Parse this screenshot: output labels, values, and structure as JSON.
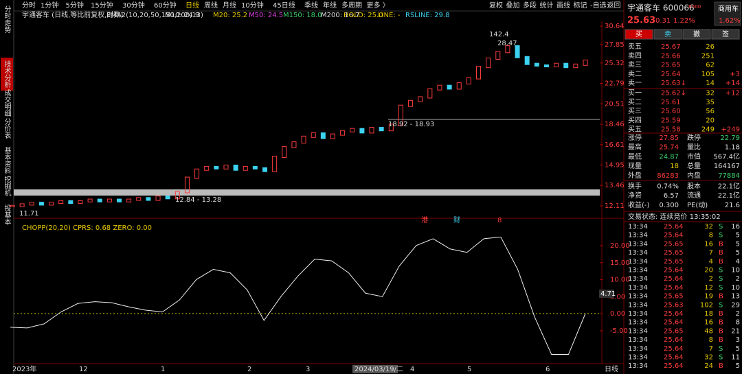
{
  "nav_tabs": [
    "分时走势",
    "技术分析",
    "成交明细",
    "分价表",
    "基本资料",
    "挖掘机",
    "投基本"
  ],
  "period_tabs": [
    "分时",
    "1分钟",
    "5分钟",
    "15分钟",
    "30分钟",
    "60分钟",
    "日线",
    "周线",
    "月线",
    "10分钟",
    "45日线",
    "季线",
    "年线",
    "多周期",
    "更多 〉"
  ],
  "tools": [
    "复权",
    "叠加",
    "多段",
    "统计",
    "画线",
    "标记",
    "-自选",
    "返回"
  ],
  "indicator_title": "宇通客车 (日线,等比前复权,对数)",
  "ema_label": "EMA2(10,20,50,150,200,13)",
  "ma_values": [
    "M10: 24.9",
    "M20: 25.2",
    "M50: 24.5",
    "M150: 18.0",
    "M200: 16.7",
    "HOLD: 25.0",
    "LINE: -",
    "RSLINE: 29.8"
  ],
  "price_axis": [
    30.64,
    27.85,
    25.32,
    22.79,
    20.51,
    18.46,
    16.61,
    14.95,
    13.46,
    12.11
  ],
  "annotations": [
    "142.4",
    "28.47",
    "18.92 - 18.93",
    "12.84 - 13.28",
    "11.71"
  ],
  "event_tags": [
    "港",
    "财",
    "8"
  ],
  "closes": [
    12.1,
    12.2,
    12.3,
    12.2,
    12.3,
    12.4,
    12.3,
    12.4,
    12.5,
    12.4,
    12.5,
    12.4,
    12.5,
    12.6,
    12.5,
    12.7,
    12.6,
    13.0,
    14.0,
    14.6,
    14.8,
    14.7,
    14.9,
    14.6,
    14.8,
    14.7,
    14.5,
    15.6,
    16.4,
    16.8,
    17.3,
    17.6,
    17.2,
    17.5,
    17.8,
    18.0,
    17.7,
    18.1,
    17.9,
    18.4,
    20.3,
    20.8,
    21.2,
    22.1,
    22.5,
    22.2,
    22.8,
    23.4,
    24.8,
    25.9,
    26.8,
    27.6,
    26.1,
    25.2,
    25.0,
    24.9,
    25.2,
    24.8,
    25.1,
    25.63
  ],
  "chopp_label": "CHOPP(20,20)  CPRS: 0.68  ZERO: 0.00",
  "chopp_axis": [
    "20.00",
    "15.00",
    "10.00",
    "5.00",
    "0.00",
    "-5.00"
  ],
  "chopp_current": "4.71",
  "chopp": [
    -4,
    -4.2,
    -3,
    0.5,
    3,
    3.5,
    3.2,
    2,
    1,
    0.5,
    4,
    10,
    13,
    12,
    7,
    -2,
    5,
    11,
    16,
    15.5,
    12,
    6,
    5,
    14,
    20,
    22,
    19,
    18,
    22,
    22.5,
    13,
    -1,
    -12,
    -12,
    0
  ],
  "date_axis": [
    "2023年",
    "12",
    "1",
    "2",
    "3",
    "2024/03/19/二",
    "4",
    "5",
    "6"
  ],
  "period_label": "日线",
  "quote": {
    "name": "宇通客车 600066",
    "tag": "R500",
    "sector": "商用车",
    "price": "25.63",
    "change": "0.31",
    "pct": "1.22%",
    "sector_pct": "1.62%"
  },
  "buttons": [
    "买",
    "卖",
    "撤",
    "签"
  ],
  "order_book": [
    [
      "卖五",
      "25.67",
      "26"
    ],
    [
      "卖四",
      "25.66",
      "251"
    ],
    [
      "卖三",
      "25.65",
      "62"
    ],
    [
      "卖二",
      "25.64",
      "105",
      "+3"
    ],
    [
      "卖一",
      "25.63↓",
      "14",
      "+14"
    ],
    [
      "买一",
      "25.62↓",
      "32",
      "+12"
    ],
    [
      "买二",
      "25.61",
      "35"
    ],
    [
      "买三",
      "25.60",
      "56"
    ],
    [
      "买四",
      "25.59",
      "20"
    ],
    [
      "买五",
      "25.58",
      "249",
      "+249"
    ]
  ],
  "stats": [
    [
      "涨停",
      "27.85",
      "跌停",
      "22.79"
    ],
    [
      "最高",
      "25.74",
      "量比",
      "1.18"
    ],
    [
      "最低",
      "24.87",
      "市值",
      "567.4亿"
    ],
    [
      "现量",
      "18",
      "总量",
      "164167"
    ],
    [
      "外盘",
      "86283",
      "内盘",
      "77884"
    ],
    [
      "换手",
      "0.74%",
      "股本",
      "22.1亿"
    ],
    [
      "净资",
      "6.57",
      "流通",
      "22.1亿"
    ],
    [
      "收益(-)",
      "0.300",
      "PE(动)",
      "21.6"
    ]
  ],
  "status": "交易状态: 连续竞价 13:35:02",
  "trades": [
    [
      "13:34",
      "25.64",
      "32",
      "S",
      "16"
    ],
    [
      "13:34",
      "25.64",
      "8",
      "S",
      "5"
    ],
    [
      "13:34",
      "25.65",
      "16",
      "B",
      "5"
    ],
    [
      "13:34",
      "25.65",
      "7",
      "B",
      "5"
    ],
    [
      "13:34",
      "25.65",
      "4",
      "B",
      "4"
    ],
    [
      "13:34",
      "25.64",
      "20",
      "S",
      "10"
    ],
    [
      "13:34",
      "25.64",
      "2",
      "S",
      "2"
    ],
    [
      "13:34",
      "25.64",
      "12",
      "S",
      "10"
    ],
    [
      "13:34",
      "25.65",
      "19",
      "B",
      "13"
    ],
    [
      "13:34",
      "25.63",
      "102",
      "S",
      "29"
    ],
    [
      "13:34",
      "25.64",
      "18",
      "B",
      "2"
    ],
    [
      "13:34",
      "25.64",
      "16",
      "B",
      "8"
    ],
    [
      "13:34",
      "25.65",
      "48",
      "B",
      "21"
    ],
    [
      "13:34",
      "25.64",
      "8",
      "B",
      "3"
    ],
    [
      "13:34",
      "25.64",
      "7",
      "S",
      "5"
    ],
    [
      "13:34",
      "25.64",
      "32",
      "S",
      "11"
    ],
    [
      "13:34",
      "25.64",
      "24",
      "B",
      "5"
    ]
  ]
}
